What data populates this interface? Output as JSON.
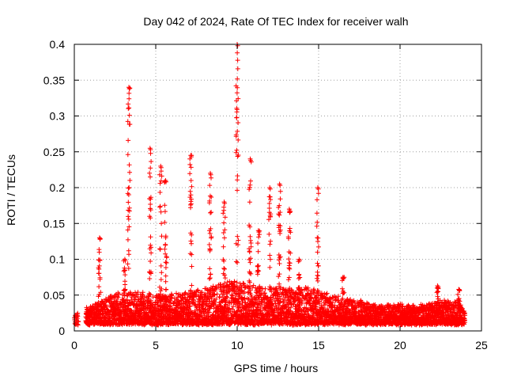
{
  "chart_data": {
    "type": "scatter",
    "title": "Day 042 of 2024, Rate Of TEC Index for receiver walh",
    "xlabel": "GPS time / hours",
    "ylabel": "ROTI / TECUs",
    "xlim": [
      0,
      25
    ],
    "ylim": [
      0,
      0.4
    ],
    "xticks": [
      0,
      5,
      10,
      15,
      20,
      25
    ],
    "yticks": [
      0,
      0.05,
      0.1,
      0.15,
      0.2,
      0.25,
      0.3,
      0.35,
      0.4
    ],
    "marker": "+",
    "color": "#ff0000",
    "grid": true,
    "series": [
      {
        "name": "ROTI",
        "baseline_envelope": [
          [
            0.0,
            0.022
          ],
          [
            0.7,
            0.03
          ],
          [
            1.5,
            0.04
          ],
          [
            2.5,
            0.05
          ],
          [
            3.5,
            0.055
          ],
          [
            4.5,
            0.05
          ],
          [
            5.5,
            0.05
          ],
          [
            6.5,
            0.05
          ],
          [
            7.5,
            0.055
          ],
          [
            8.5,
            0.06
          ],
          [
            9.5,
            0.07
          ],
          [
            10.5,
            0.065
          ],
          [
            11.5,
            0.06
          ],
          [
            12.5,
            0.06
          ],
          [
            13.5,
            0.055
          ],
          [
            14.5,
            0.06
          ],
          [
            15.5,
            0.05
          ],
          [
            16.5,
            0.045
          ],
          [
            17.5,
            0.04
          ],
          [
            18.5,
            0.035
          ],
          [
            19.5,
            0.035
          ],
          [
            20.5,
            0.035
          ],
          [
            21.5,
            0.035
          ],
          [
            22.5,
            0.04
          ],
          [
            23.5,
            0.04
          ],
          [
            24.0,
            0.03
          ]
        ],
        "spikes": [
          {
            "x": 1.55,
            "y": 0.13
          },
          {
            "x": 3.1,
            "y": 0.1
          },
          {
            "x": 3.35,
            "y": 0.34
          },
          {
            "x": 4.65,
            "y": 0.255
          },
          {
            "x": 5.3,
            "y": 0.23
          },
          {
            "x": 5.6,
            "y": 0.21
          },
          {
            "x": 7.15,
            "y": 0.245
          },
          {
            "x": 8.35,
            "y": 0.22
          },
          {
            "x": 9.2,
            "y": 0.18
          },
          {
            "x": 10.0,
            "y": 0.4
          },
          {
            "x": 10.8,
            "y": 0.24
          },
          {
            "x": 11.3,
            "y": 0.14
          },
          {
            "x": 12.0,
            "y": 0.2
          },
          {
            "x": 12.6,
            "y": 0.205
          },
          {
            "x": 13.2,
            "y": 0.17
          },
          {
            "x": 13.8,
            "y": 0.1
          },
          {
            "x": 14.95,
            "y": 0.2
          },
          {
            "x": 16.5,
            "y": 0.075
          },
          {
            "x": 22.3,
            "y": 0.063
          },
          {
            "x": 23.6,
            "y": 0.058
          }
        ]
      }
    ]
  }
}
